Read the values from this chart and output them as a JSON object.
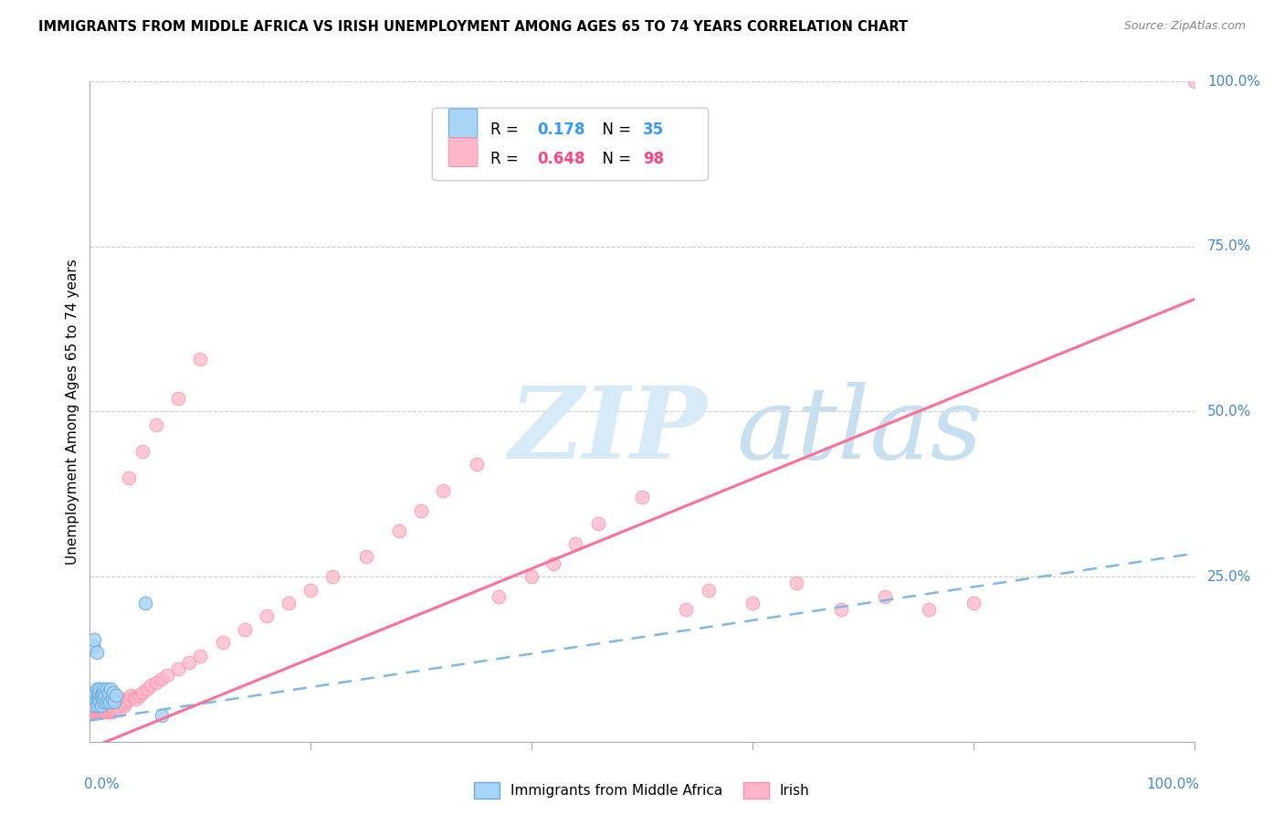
{
  "title": "IMMIGRANTS FROM MIDDLE AFRICA VS IRISH UNEMPLOYMENT AMONG AGES 65 TO 74 YEARS CORRELATION CHART",
  "source": "Source: ZipAtlas.com",
  "ylabel": "Unemployment Among Ages 65 to 74 years",
  "legend_label1": "Immigrants from Middle Africa",
  "legend_label2": "Irish",
  "scatter_color_blue": "#A8D4F5",
  "scatter_color_pink": "#FFB6C8",
  "line_color_blue": "#7EB8E8",
  "line_color_pink": "#FF7099",
  "watermark_zip_color": "#D6EAF8",
  "watermark_atlas_color": "#C8DFF0",
  "title_fontsize": 10.5,
  "source_fontsize": 9,
  "R1": "0.178",
  "N1": "35",
  "R2": "0.648",
  "N2": "98",
  "blue_line_y0": 0.032,
  "blue_line_y1": 0.285,
  "pink_line_y0": -0.01,
  "pink_line_y1": 0.67,
  "xlim": [
    0.0,
    1.0
  ],
  "ylim": [
    0.0,
    1.0
  ],
  "blue_x": [
    0.004,
    0.005,
    0.005,
    0.006,
    0.006,
    0.007,
    0.007,
    0.008,
    0.008,
    0.009,
    0.009,
    0.01,
    0.01,
    0.011,
    0.011,
    0.012,
    0.012,
    0.013,
    0.013,
    0.014,
    0.015,
    0.015,
    0.016,
    0.017,
    0.018,
    0.019,
    0.02,
    0.021,
    0.022,
    0.024,
    0.003,
    0.004,
    0.006,
    0.05,
    0.065
  ],
  "blue_y": [
    0.055,
    0.065,
    0.075,
    0.06,
    0.08,
    0.055,
    0.07,
    0.065,
    0.075,
    0.06,
    0.08,
    0.055,
    0.07,
    0.065,
    0.075,
    0.06,
    0.08,
    0.065,
    0.075,
    0.07,
    0.06,
    0.08,
    0.065,
    0.075,
    0.06,
    0.08,
    0.065,
    0.075,
    0.06,
    0.07,
    0.145,
    0.155,
    0.135,
    0.21,
    0.04
  ],
  "pink_x": [
    0.001,
    0.002,
    0.002,
    0.003,
    0.003,
    0.004,
    0.004,
    0.005,
    0.005,
    0.006,
    0.006,
    0.006,
    0.007,
    0.007,
    0.008,
    0.008,
    0.009,
    0.009,
    0.01,
    0.01,
    0.01,
    0.011,
    0.011,
    0.012,
    0.012,
    0.013,
    0.013,
    0.014,
    0.014,
    0.015,
    0.015,
    0.016,
    0.016,
    0.017,
    0.017,
    0.018,
    0.018,
    0.019,
    0.019,
    0.02,
    0.02,
    0.021,
    0.022,
    0.022,
    0.023,
    0.024,
    0.025,
    0.026,
    0.027,
    0.028,
    0.03,
    0.031,
    0.033,
    0.035,
    0.037,
    0.04,
    0.042,
    0.045,
    0.048,
    0.052,
    0.055,
    0.06,
    0.065,
    0.07,
    0.08,
    0.09,
    0.1,
    0.12,
    0.14,
    0.16,
    0.18,
    0.2,
    0.22,
    0.25,
    0.28,
    0.3,
    0.32,
    0.35,
    0.37,
    0.4,
    0.42,
    0.44,
    0.46,
    0.5,
    0.54,
    0.56,
    0.6,
    0.64,
    0.68,
    0.72,
    0.76,
    0.8,
    0.035,
    0.048,
    0.06,
    0.08,
    0.1,
    1.0
  ],
  "pink_y": [
    0.05,
    0.045,
    0.055,
    0.048,
    0.058,
    0.045,
    0.055,
    0.048,
    0.06,
    0.045,
    0.055,
    0.065,
    0.048,
    0.058,
    0.045,
    0.055,
    0.048,
    0.06,
    0.045,
    0.055,
    0.065,
    0.048,
    0.058,
    0.045,
    0.055,
    0.048,
    0.06,
    0.045,
    0.055,
    0.048,
    0.06,
    0.045,
    0.055,
    0.048,
    0.06,
    0.045,
    0.055,
    0.048,
    0.06,
    0.045,
    0.055,
    0.048,
    0.06,
    0.05,
    0.055,
    0.048,
    0.06,
    0.055,
    0.048,
    0.06,
    0.065,
    0.055,
    0.06,
    0.065,
    0.07,
    0.068,
    0.065,
    0.07,
    0.075,
    0.08,
    0.085,
    0.09,
    0.095,
    0.1,
    0.11,
    0.12,
    0.13,
    0.15,
    0.17,
    0.19,
    0.21,
    0.23,
    0.25,
    0.28,
    0.32,
    0.35,
    0.38,
    0.42,
    0.22,
    0.25,
    0.27,
    0.3,
    0.33,
    0.37,
    0.2,
    0.23,
    0.21,
    0.24,
    0.2,
    0.22,
    0.2,
    0.21,
    0.4,
    0.44,
    0.48,
    0.52,
    0.58,
    1.0
  ]
}
